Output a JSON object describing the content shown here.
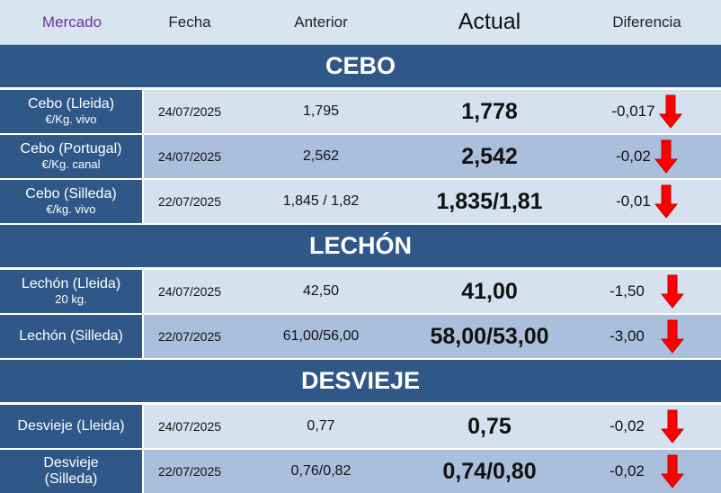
{
  "header": {
    "mercado": "Mercado",
    "fecha": "Fecha",
    "anterior": "Anterior",
    "actual": "Actual",
    "diferencia": "Diferencia"
  },
  "colors": {
    "header_bg": "#d9e4f1",
    "section_bg": "#2f5888",
    "row_light": "#d6e1ef",
    "row_dark": "#aabfdc",
    "arrow": "#ff0000",
    "mercado_header": "#7030a0"
  },
  "sections": [
    {
      "title": "CEBO",
      "rows": [
        {
          "name": "Cebo (Lleida)",
          "unit": "€/Kg. vivo",
          "fecha": "24/07/2025",
          "anterior": "1,795",
          "actual": "1,778",
          "diferencia": "-0,017",
          "trend": "down-arrow-icon"
        },
        {
          "name": "Cebo (Portugal)",
          "unit": "€/Kg. canal",
          "fecha": "24/07/2025",
          "anterior": "2,562",
          "actual": "2,542",
          "diferencia": "-0,02",
          "trend": "down-arrow-icon"
        },
        {
          "name": "Cebo (Silleda)",
          "unit": "€/kg. vivo",
          "fecha": "22/07/2025",
          "anterior": "1,845 / 1,82",
          "actual": "1,835/1,81",
          "diferencia": "-0,01",
          "trend": "down-arrow-icon"
        }
      ]
    },
    {
      "title": "LECHÓN",
      "rows": [
        {
          "name": "Lechón (Lleida)",
          "unit": "20 kg.",
          "fecha": "24/07/2025",
          "anterior": "42,50",
          "actual": "41,00",
          "diferencia": "-1,50",
          "trend": "down-arrow-icon"
        },
        {
          "name": "Lechón (Silleda)",
          "unit": "",
          "fecha": "22/07/2025",
          "anterior": "61,00/56,00",
          "actual": "58,00/53,00",
          "diferencia": "-3,00",
          "trend": "down-arrow-icon"
        }
      ]
    },
    {
      "title": "DESVIEJE",
      "rows": [
        {
          "name": "Desvieje (Lleida)",
          "unit": "",
          "fecha": "24/07/2025",
          "anterior": "0,77",
          "actual": "0,75",
          "diferencia": "-0,02",
          "trend": "down-arrow-icon"
        },
        {
          "name": "Desvieje",
          "unit": "(Silleda)",
          "fecha": "22/07/2025",
          "anterior": "0,76/0,82",
          "actual": "0,74/0,80",
          "diferencia": "-0,02",
          "trend": "down-arrow-icon"
        }
      ]
    }
  ]
}
